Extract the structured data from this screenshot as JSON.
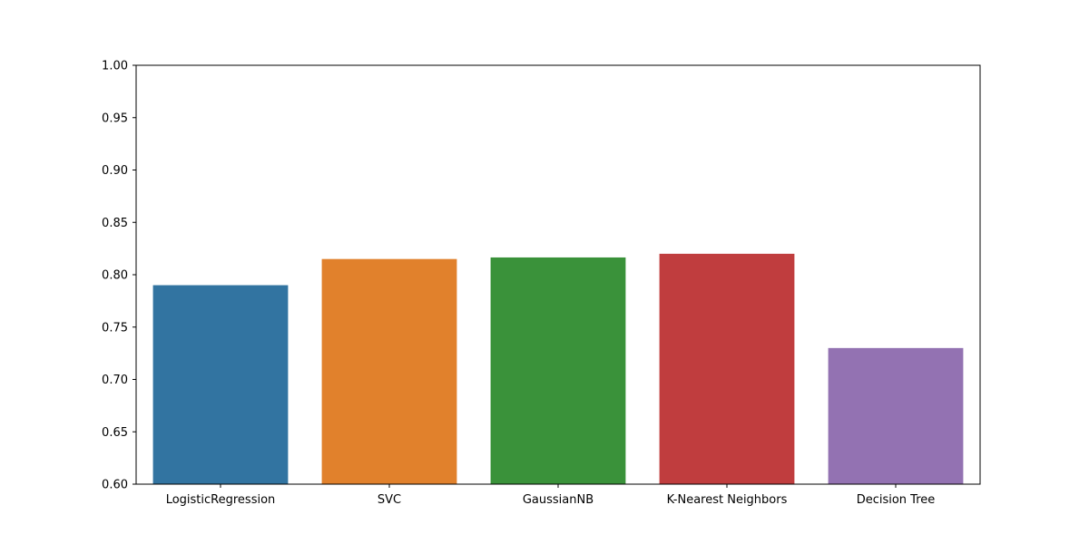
{
  "chart_data": {
    "type": "bar",
    "title": "",
    "xlabel": "",
    "ylabel": "",
    "categories": [
      "LogisticRegression",
      "SVC",
      "GaussianNB",
      "K-Nearest Neighbors",
      "Decision Tree"
    ],
    "values": [
      0.79,
      0.815,
      0.8165,
      0.82,
      0.73
    ],
    "colors": [
      "#3274a1",
      "#e1812c",
      "#3a923a",
      "#c03d3e",
      "#9372b2"
    ],
    "ylim": [
      0.6,
      1.0
    ],
    "yticks": [
      "0.60",
      "0.65",
      "0.70",
      "0.75",
      "0.80",
      "0.85",
      "0.90",
      "0.95",
      "1.00"
    ],
    "grid": false,
    "legend": "none"
  }
}
